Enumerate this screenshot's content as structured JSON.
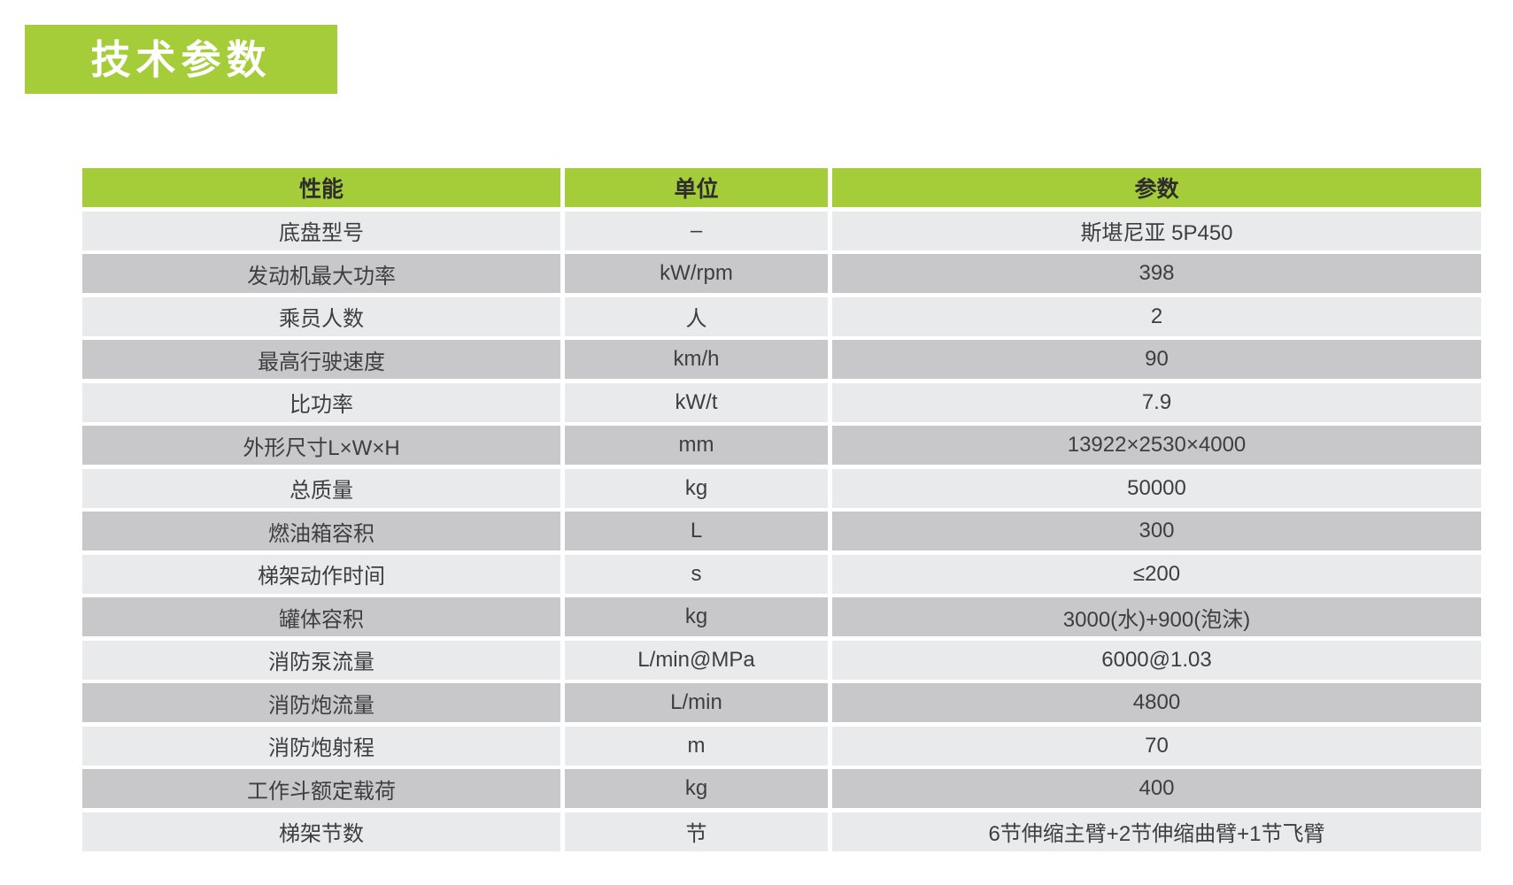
{
  "page": {
    "background_color": "#ffffff"
  },
  "title_badge": {
    "text": "技术参数",
    "bg_color": "#a5cd39",
    "text_color": "#ffffff"
  },
  "table": {
    "colors": {
      "header_bg": "#a5cd39",
      "row_light": "#e9eaec",
      "row_dark": "#c8c8ca",
      "header_text": "#2d2d2d",
      "body_text": "#3e3e3e"
    },
    "header": {
      "performance": "性能",
      "unit": "单位",
      "parameter": "参数"
    },
    "rows": [
      {
        "label": "底盘型号",
        "unit": "–",
        "value": "斯堪尼亚 5P450"
      },
      {
        "label": "发动机最大功率",
        "unit": "kW/rpm",
        "value": "398"
      },
      {
        "label": "乘员人数",
        "unit": "人",
        "value": "2"
      },
      {
        "label": "最高行驶速度",
        "unit": "km/h",
        "value": "90"
      },
      {
        "label": "比功率",
        "unit": "kW/t",
        "value": "7.9"
      },
      {
        "label": "外形尺寸L×W×H",
        "unit": "mm",
        "value": "13922×2530×4000"
      },
      {
        "label": "总质量",
        "unit": "kg",
        "value": "50000"
      },
      {
        "label": "燃油箱容积",
        "unit": "L",
        "value": "300"
      },
      {
        "label": "梯架动作时间",
        "unit": "s",
        "value": "≤200"
      },
      {
        "label": "罐体容积",
        "unit": "kg",
        "value": "3000(水)+900(泡沫)"
      },
      {
        "label": "消防泵流量",
        "unit": "L/min@MPa",
        "value": "6000@1.03"
      },
      {
        "label": "消防炮流量",
        "unit": "L/min",
        "value": "4800"
      },
      {
        "label": "消防炮射程",
        "unit": "m",
        "value": "70"
      },
      {
        "label": "工作斗额定载荷",
        "unit": "kg",
        "value": "400"
      },
      {
        "label": "梯架节数",
        "unit": "节",
        "value": "6节伸缩主臂+2节伸缩曲臂+1节飞臂"
      }
    ]
  }
}
